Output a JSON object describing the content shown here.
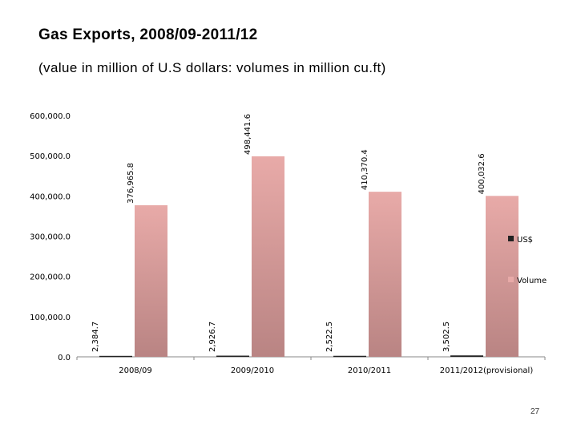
{
  "slide": {
    "title": "Gas Exports, 2008/09-2011/12",
    "subtitle": "(value in million of U.S dollars: volumes in million cu.ft)",
    "page_number": "27"
  },
  "colors": {
    "us_bar": "#222222",
    "volume_top": "#e8aaa8",
    "volume_bottom": "#b98483",
    "axis": "#888888"
  },
  "chart_data": {
    "type": "bar",
    "title": "Gas Exports, 2008/09-2011/12",
    "xlabel": "",
    "ylabel": "",
    "ylim": [
      0,
      600000
    ],
    "ytick_step": 100000,
    "yticks": [
      "0.0",
      "100,000.0",
      "200,000.0",
      "300,000.0",
      "400,000.0",
      "500,000.0",
      "600,000.0"
    ],
    "categories": [
      "2008/09",
      "2009/2010",
      "2010/2011",
      "2011/2012(provisional)"
    ],
    "series": [
      {
        "name": "US$",
        "values": [
          2384.7,
          2926.7,
          2522.5,
          3502.5
        ],
        "labels": [
          "2,384.7",
          "2,926.7",
          "2,522.5",
          "3,502.5"
        ]
      },
      {
        "name": "Volume",
        "values": [
          376965.8,
          498441.6,
          410370.4,
          400032.6
        ],
        "labels": [
          "376,965.8",
          "498,441.6",
          "410,370.4",
          "400,032.6"
        ]
      }
    ],
    "legend": [
      "US$",
      "Volume"
    ],
    "legend_position": "right"
  }
}
